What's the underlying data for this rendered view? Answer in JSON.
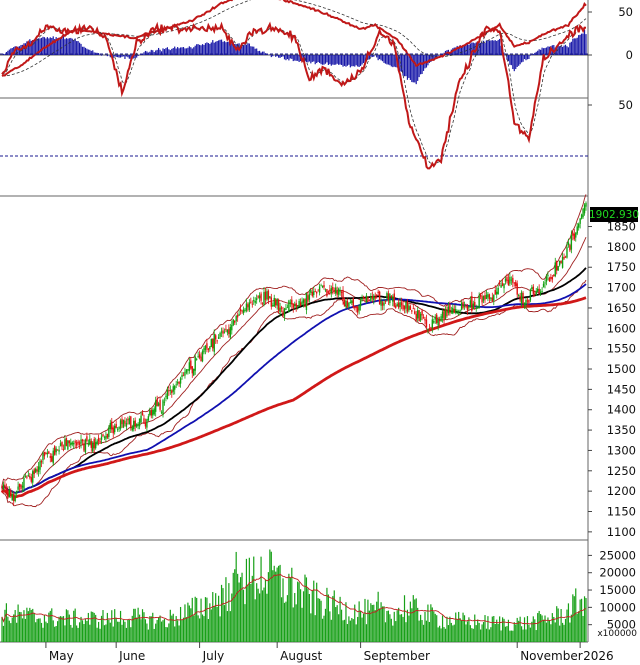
{
  "chart_data": {
    "type": "stock-candlestick",
    "price_label": "1902.930",
    "x_ticks": [
      "May",
      "June",
      "July",
      "August",
      "September",
      "November",
      "2026"
    ],
    "price_axis": {
      "ticks": [
        1100,
        1150,
        1200,
        1250,
        1300,
        1350,
        1400,
        1450,
        1500,
        1550,
        1600,
        1650,
        1700,
        1750,
        1800,
        1850
      ],
      "ylim": [
        1080,
        1925
      ]
    },
    "macd_axis": {
      "ticks": [
        0,
        50
      ]
    },
    "stoch_axis": {
      "ticks": [
        50
      ],
      "dashed_levels": [
        80,
        20
      ]
    },
    "volume_axis": {
      "ticks": [
        "5000",
        "10000",
        "15000",
        "20000",
        "25000"
      ],
      "unit": "x100000",
      "ylim": [
        0,
        28000
      ]
    },
    "price_keypoints": [
      [
        0,
        1205
      ],
      [
        8,
        1185
      ],
      [
        14,
        1225
      ],
      [
        22,
        1250
      ],
      [
        30,
        1285
      ],
      [
        40,
        1300
      ],
      [
        48,
        1330
      ],
      [
        58,
        1315
      ],
      [
        68,
        1330
      ],
      [
        80,
        1355
      ],
      [
        95,
        1375
      ],
      [
        108,
        1410
      ],
      [
        120,
        1470
      ],
      [
        133,
        1520
      ],
      [
        146,
        1575
      ],
      [
        158,
        1620
      ],
      [
        168,
        1660
      ],
      [
        180,
        1675
      ],
      [
        192,
        1650
      ],
      [
        205,
        1665
      ],
      [
        218,
        1700
      ],
      [
        228,
        1690
      ],
      [
        240,
        1650
      ],
      [
        252,
        1680
      ],
      [
        262,
        1670
      ],
      [
        272,
        1660
      ],
      [
        282,
        1640
      ],
      [
        291,
        1600
      ],
      [
        300,
        1625
      ],
      [
        312,
        1645
      ],
      [
        325,
        1660
      ],
      [
        338,
        1690
      ],
      [
        348,
        1720
      ],
      [
        356,
        1670
      ],
      [
        366,
        1690
      ],
      [
        375,
        1730
      ],
      [
        383,
        1770
      ],
      [
        392,
        1840
      ],
      [
        398,
        1902
      ]
    ],
    "volume_keypoints": [
      [
        0,
        8000
      ],
      [
        30,
        7000
      ],
      [
        60,
        6500
      ],
      [
        90,
        7000
      ],
      [
        110,
        6000
      ],
      [
        130,
        9000
      ],
      [
        150,
        13000
      ],
      [
        165,
        16000
      ],
      [
        178,
        20000
      ],
      [
        190,
        17000
      ],
      [
        205,
        14000
      ],
      [
        220,
        11000
      ],
      [
        240,
        9000
      ],
      [
        260,
        8000
      ],
      [
        280,
        9500
      ],
      [
        300,
        6500
      ],
      [
        330,
        5500
      ],
      [
        360,
        5500
      ],
      [
        385,
        8000
      ],
      [
        398,
        13000
      ]
    ],
    "volume_spikes": [
      [
        155,
        17000
      ],
      [
        160,
        26000
      ],
      [
        164,
        20000
      ],
      [
        167,
        24000
      ],
      [
        186,
        22000
      ],
      [
        197,
        18500
      ],
      [
        257,
        14500
      ],
      [
        275,
        13500
      ]
    ],
    "macd_keypoints": [
      [
        0,
        -25
      ],
      [
        15,
        -10
      ],
      [
        30,
        10
      ],
      [
        50,
        30
      ],
      [
        70,
        25
      ],
      [
        90,
        20
      ],
      [
        110,
        30
      ],
      [
        130,
        40
      ],
      [
        150,
        60
      ],
      [
        170,
        72
      ],
      [
        190,
        65
      ],
      [
        210,
        55
      ],
      [
        230,
        42
      ],
      [
        245,
        30
      ],
      [
        255,
        35
      ],
      [
        270,
        18
      ],
      [
        283,
        -12
      ],
      [
        300,
        -2
      ],
      [
        320,
        15
      ],
      [
        340,
        35
      ],
      [
        350,
        10
      ],
      [
        360,
        15
      ],
      [
        375,
        28
      ],
      [
        387,
        35
      ],
      [
        398,
        58
      ]
    ],
    "stoch_keypoints": [
      [
        0,
        68
      ],
      [
        8,
        82
      ],
      [
        20,
        85
      ],
      [
        30,
        96
      ],
      [
        45,
        93
      ],
      [
        60,
        96
      ],
      [
        72,
        88
      ],
      [
        82,
        57
      ],
      [
        92,
        87
      ],
      [
        105,
        95
      ],
      [
        130,
        95
      ],
      [
        150,
        95
      ],
      [
        160,
        82
      ],
      [
        170,
        93
      ],
      [
        185,
        95
      ],
      [
        200,
        90
      ],
      [
        210,
        65
      ],
      [
        220,
        72
      ],
      [
        232,
        62
      ],
      [
        245,
        70
      ],
      [
        258,
        93
      ],
      [
        268,
        85
      ],
      [
        278,
        40
      ],
      [
        291,
        14
      ],
      [
        300,
        18
      ],
      [
        312,
        62
      ],
      [
        330,
        95
      ],
      [
        340,
        93
      ],
      [
        350,
        40
      ],
      [
        360,
        30
      ],
      [
        370,
        78
      ],
      [
        383,
        87
      ],
      [
        392,
        95
      ],
      [
        398,
        96
      ]
    ]
  }
}
